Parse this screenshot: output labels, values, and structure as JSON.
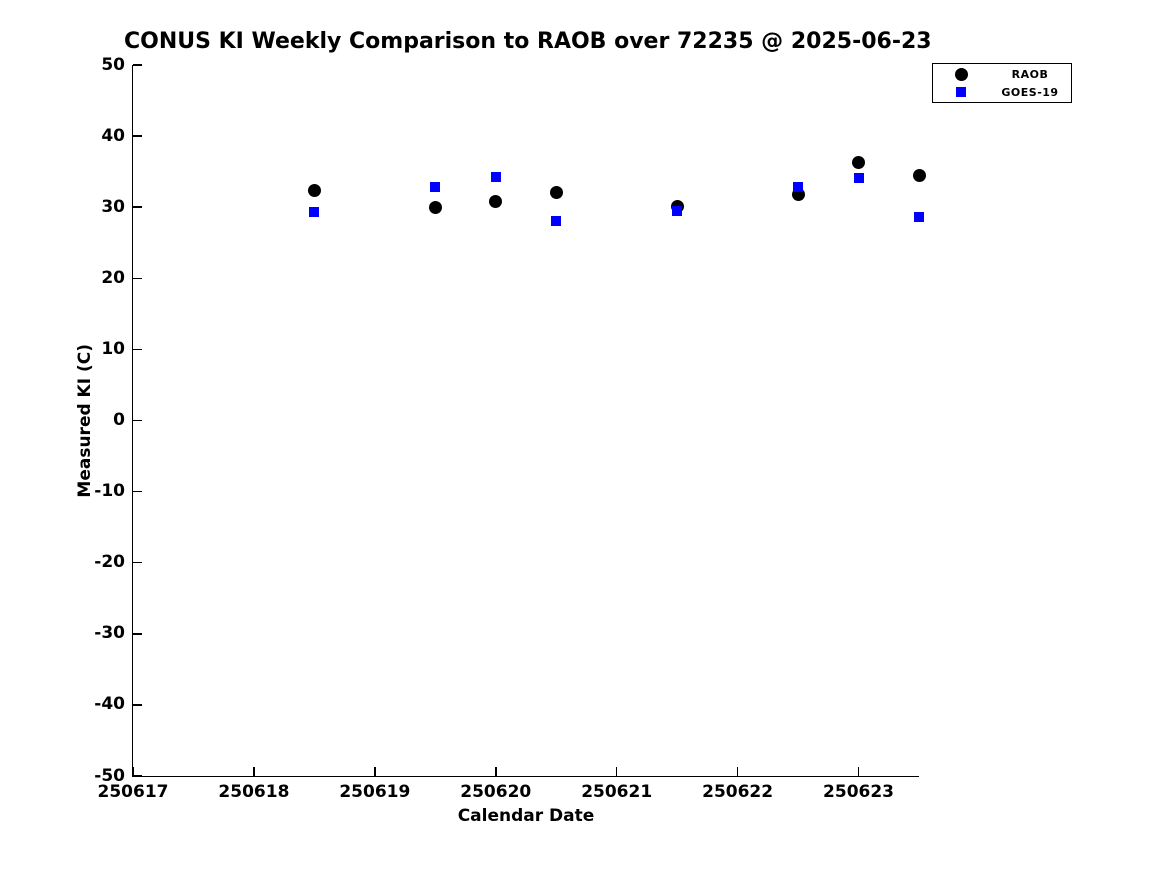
{
  "title": "CONUS KI Weekly Comparison to RAOB over 72235 @ 2025-06-23",
  "chart_data": {
    "type": "scatter",
    "title": "CONUS KI Weekly Comparison to RAOB over 72235 @ 2025-06-23",
    "xlabel": "Calendar Date",
    "ylabel": "Measured KI (C)",
    "xlim": [
      250617,
      250623.5
    ],
    "ylim": [
      -50,
      50
    ],
    "x_ticks": [
      250617,
      250618,
      250619,
      250620,
      250621,
      250622,
      250623
    ],
    "y_ticks": [
      50,
      40,
      30,
      20,
      10,
      0,
      -10,
      -20,
      -30,
      -40,
      -50
    ],
    "grid": false,
    "legend_position": "top-right-outside",
    "series": [
      {
        "name": "RAOB",
        "marker": "circle",
        "color": "#000000",
        "points": [
          [
            250618.5,
            32.4
          ],
          [
            250619.5,
            29.9
          ],
          [
            250620.0,
            30.8
          ],
          [
            250620.5,
            32.1
          ],
          [
            250621.5,
            30.1
          ],
          [
            250622.5,
            31.8
          ],
          [
            250623.0,
            36.3
          ],
          [
            250623.5,
            34.4
          ]
        ]
      },
      {
        "name": "GOES-19",
        "marker": "square",
        "color": "#0000ff",
        "points": [
          [
            250618.5,
            29.3
          ],
          [
            250619.5,
            32.8
          ],
          [
            250620.0,
            34.3
          ],
          [
            250620.5,
            28.0
          ],
          [
            250621.5,
            29.4
          ],
          [
            250622.5,
            32.8
          ],
          [
            250623.0,
            34.1
          ],
          [
            250623.5,
            28.6
          ]
        ]
      }
    ]
  },
  "legend": {
    "raob_label": "RAOB",
    "goes_label": "GOES-19"
  }
}
